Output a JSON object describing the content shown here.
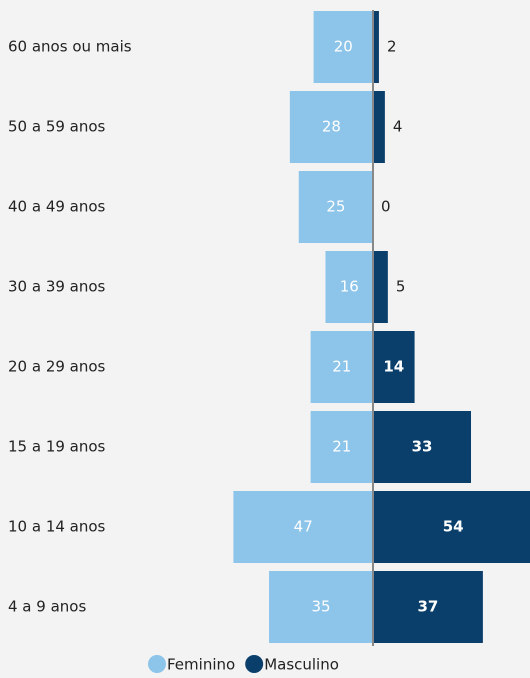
{
  "chart_data": {
    "type": "bar",
    "categories": [
      "60 anos ou mais",
      "50 a 59 anos",
      "40 a 49 anos",
      "30 a 39 anos",
      "20 a 29 anos",
      "15 a 19 anos",
      "10 a 14 anos",
      "4 a 9 anos"
    ],
    "series": [
      {
        "name": "Feminino",
        "color": "#8cc4ea",
        "values": [
          20,
          28,
          25,
          16,
          21,
          21,
          47,
          35
        ]
      },
      {
        "name": "Masculino",
        "color": "#0b3f6b",
        "values": [
          2,
          4,
          0,
          5,
          14,
          33,
          54,
          37
        ]
      }
    ]
  }
}
